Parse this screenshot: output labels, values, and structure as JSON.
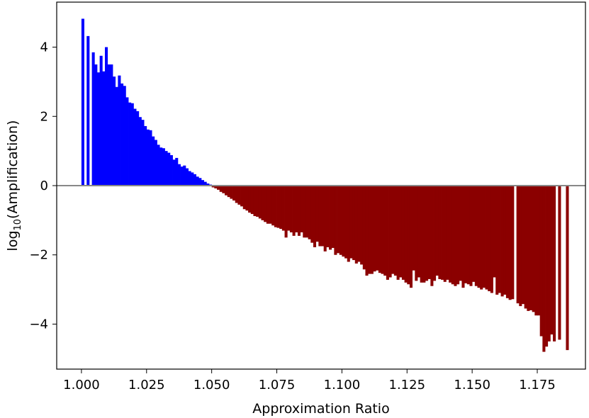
{
  "chart_data": {
    "type": "bar",
    "title": "",
    "xlabel": "Approximation Ratio",
    "ylabel": "log10(Amplification)",
    "ylabel_parts": {
      "base": "log",
      "sub": "10",
      "rest": "(Amplification)"
    },
    "xlim": [
      0.9905,
      1.1935
    ],
    "ylim": [
      -5.3,
      5.3
    ],
    "xticks": [
      1.0,
      1.025,
      1.05,
      1.075,
      1.1,
      1.125,
      1.15,
      1.175
    ],
    "xtick_labels": [
      "1.000",
      "1.025",
      "1.050",
      "1.075",
      "1.100",
      "1.125",
      "1.150",
      "1.175"
    ],
    "yticks": [
      -4,
      -2,
      0,
      2,
      4
    ],
    "ytick_labels": [
      "−4",
      "−2",
      "0",
      "2",
      "4"
    ],
    "bar_width": 0.001,
    "grid": false,
    "legend": "none",
    "zero_line_color": "#888888",
    "colors": {
      "positive": "#0000ff",
      "negative": "#8b0000"
    },
    "bars": [
      [
        1.0005,
        4.82
      ],
      [
        1.0025,
        4.32
      ],
      [
        1.0045,
        3.85
      ],
      [
        1.0055,
        3.5
      ],
      [
        1.0065,
        3.27
      ],
      [
        1.0075,
        3.75
      ],
      [
        1.0085,
        3.3
      ],
      [
        1.0095,
        4.0
      ],
      [
        1.0105,
        3.5
      ],
      [
        1.0115,
        3.5
      ],
      [
        1.0125,
        3.15
      ],
      [
        1.0135,
        2.85
      ],
      [
        1.0145,
        3.18
      ],
      [
        1.0155,
        2.95
      ],
      [
        1.0165,
        2.88
      ],
      [
        1.0175,
        2.55
      ],
      [
        1.0185,
        2.4
      ],
      [
        1.0195,
        2.38
      ],
      [
        1.0205,
        2.22
      ],
      [
        1.0215,
        2.15
      ],
      [
        1.0225,
        1.98
      ],
      [
        1.0235,
        1.9
      ],
      [
        1.0245,
        1.72
      ],
      [
        1.0255,
        1.62
      ],
      [
        1.0265,
        1.6
      ],
      [
        1.0275,
        1.42
      ],
      [
        1.0285,
        1.32
      ],
      [
        1.0295,
        1.18
      ],
      [
        1.0305,
        1.1
      ],
      [
        1.0315,
        1.08
      ],
      [
        1.0325,
        1.0
      ],
      [
        1.0335,
        0.95
      ],
      [
        1.0345,
        0.88
      ],
      [
        1.0355,
        0.75
      ],
      [
        1.0365,
        0.8
      ],
      [
        1.0375,
        0.62
      ],
      [
        1.0385,
        0.55
      ],
      [
        1.0395,
        0.58
      ],
      [
        1.0405,
        0.5
      ],
      [
        1.0415,
        0.42
      ],
      [
        1.0425,
        0.38
      ],
      [
        1.0435,
        0.33
      ],
      [
        1.0445,
        0.26
      ],
      [
        1.0455,
        0.22
      ],
      [
        1.0465,
        0.16
      ],
      [
        1.0475,
        0.11
      ],
      [
        1.0485,
        0.06
      ],
      [
        1.0495,
        0.03
      ],
      [
        1.0505,
        -0.05
      ],
      [
        1.0515,
        -0.08
      ],
      [
        1.0525,
        -0.12
      ],
      [
        1.0535,
        -0.18
      ],
      [
        1.0545,
        -0.22
      ],
      [
        1.0555,
        -0.28
      ],
      [
        1.0565,
        -0.33
      ],
      [
        1.0575,
        -0.38
      ],
      [
        1.0585,
        -0.43
      ],
      [
        1.0595,
        -0.5
      ],
      [
        1.0605,
        -0.55
      ],
      [
        1.0615,
        -0.6
      ],
      [
        1.0625,
        -0.68
      ],
      [
        1.0635,
        -0.72
      ],
      [
        1.0645,
        -0.78
      ],
      [
        1.0655,
        -0.82
      ],
      [
        1.0665,
        -0.88
      ],
      [
        1.0675,
        -0.9
      ],
      [
        1.0685,
        -0.95
      ],
      [
        1.0695,
        -1.0
      ],
      [
        1.0705,
        -1.05
      ],
      [
        1.0715,
        -1.1
      ],
      [
        1.0725,
        -1.1
      ],
      [
        1.0735,
        -1.15
      ],
      [
        1.0745,
        -1.2
      ],
      [
        1.0755,
        -1.22
      ],
      [
        1.0765,
        -1.25
      ],
      [
        1.0775,
        -1.3
      ],
      [
        1.0785,
        -1.5
      ],
      [
        1.0795,
        -1.3
      ],
      [
        1.0805,
        -1.35
      ],
      [
        1.0815,
        -1.45
      ],
      [
        1.0825,
        -1.35
      ],
      [
        1.0835,
        -1.45
      ],
      [
        1.0845,
        -1.35
      ],
      [
        1.0855,
        -1.5
      ],
      [
        1.0865,
        -1.5
      ],
      [
        1.0875,
        -1.55
      ],
      [
        1.0885,
        -1.65
      ],
      [
        1.0895,
        -1.78
      ],
      [
        1.0905,
        -1.62
      ],
      [
        1.0915,
        -1.75
      ],
      [
        1.0925,
        -1.75
      ],
      [
        1.0935,
        -1.9
      ],
      [
        1.0945,
        -1.78
      ],
      [
        1.0955,
        -1.85
      ],
      [
        1.0965,
        -1.8
      ],
      [
        1.0975,
        -2.0
      ],
      [
        1.0985,
        -1.95
      ],
      [
        1.0995,
        -2.0
      ],
      [
        1.1005,
        -2.05
      ],
      [
        1.1015,
        -2.1
      ],
      [
        1.1025,
        -2.2
      ],
      [
        1.1035,
        -2.1
      ],
      [
        1.1045,
        -2.15
      ],
      [
        1.1055,
        -2.25
      ],
      [
        1.1065,
        -2.2
      ],
      [
        1.1075,
        -2.28
      ],
      [
        1.1085,
        -2.42
      ],
      [
        1.1095,
        -2.6
      ],
      [
        1.1105,
        -2.55
      ],
      [
        1.1115,
        -2.55
      ],
      [
        1.1125,
        -2.48
      ],
      [
        1.1135,
        -2.45
      ],
      [
        1.1145,
        -2.52
      ],
      [
        1.1155,
        -2.55
      ],
      [
        1.1165,
        -2.6
      ],
      [
        1.1175,
        -2.72
      ],
      [
        1.1185,
        -2.65
      ],
      [
        1.1195,
        -2.55
      ],
      [
        1.1205,
        -2.6
      ],
      [
        1.1215,
        -2.72
      ],
      [
        1.1225,
        -2.65
      ],
      [
        1.1235,
        -2.72
      ],
      [
        1.1245,
        -2.8
      ],
      [
        1.1255,
        -2.85
      ],
      [
        1.1265,
        -2.95
      ],
      [
        1.1275,
        -2.45
      ],
      [
        1.1285,
        -2.75
      ],
      [
        1.1295,
        -2.65
      ],
      [
        1.1305,
        -2.8
      ],
      [
        1.1315,
        -2.8
      ],
      [
        1.1325,
        -2.75
      ],
      [
        1.1335,
        -2.7
      ],
      [
        1.1345,
        -2.9
      ],
      [
        1.1355,
        -2.75
      ],
      [
        1.1365,
        -2.6
      ],
      [
        1.1375,
        -2.7
      ],
      [
        1.1385,
        -2.72
      ],
      [
        1.1395,
        -2.78
      ],
      [
        1.1405,
        -2.72
      ],
      [
        1.1415,
        -2.8
      ],
      [
        1.1425,
        -2.85
      ],
      [
        1.1435,
        -2.9
      ],
      [
        1.1445,
        -2.85
      ],
      [
        1.1455,
        -2.75
      ],
      [
        1.1465,
        -2.95
      ],
      [
        1.1475,
        -2.82
      ],
      [
        1.1485,
        -2.85
      ],
      [
        1.1495,
        -2.9
      ],
      [
        1.1505,
        -2.78
      ],
      [
        1.1515,
        -2.9
      ],
      [
        1.1525,
        -2.95
      ],
      [
        1.1535,
        -3.0
      ],
      [
        1.1545,
        -2.95
      ],
      [
        1.1555,
        -3.0
      ],
      [
        1.1565,
        -3.05
      ],
      [
        1.1575,
        -3.1
      ],
      [
        1.1585,
        -2.65
      ],
      [
        1.1595,
        -3.15
      ],
      [
        1.1605,
        -3.1
      ],
      [
        1.1615,
        -3.2
      ],
      [
        1.1625,
        -3.15
      ],
      [
        1.1635,
        -3.25
      ],
      [
        1.1645,
        -3.3
      ],
      [
        1.1655,
        -3.28
      ],
      [
        1.1675,
        -3.4
      ],
      [
        1.1685,
        -3.48
      ],
      [
        1.1695,
        -3.42
      ],
      [
        1.1705,
        -3.55
      ],
      [
        1.1715,
        -3.62
      ],
      [
        1.1725,
        -3.6
      ],
      [
        1.1735,
        -3.65
      ],
      [
        1.1745,
        -3.75
      ],
      [
        1.1755,
        -3.75
      ],
      [
        1.1765,
        -4.35
      ],
      [
        1.1775,
        -4.8
      ],
      [
        1.1785,
        -4.65
      ],
      [
        1.1795,
        -4.5
      ],
      [
        1.1805,
        -4.3
      ],
      [
        1.1815,
        -4.5
      ],
      [
        1.1835,
        -4.45
      ],
      [
        1.1865,
        -4.75
      ]
    ]
  }
}
